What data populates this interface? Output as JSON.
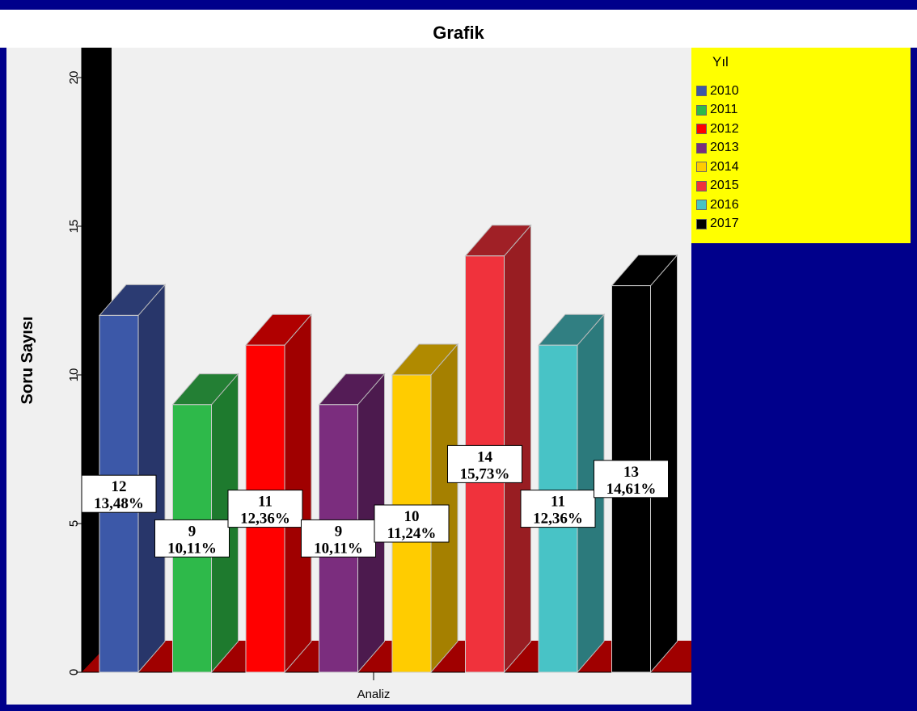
{
  "chart_data": {
    "type": "bar",
    "title": "Grafik",
    "ylabel": "Soru Sayısı",
    "xlabel": "",
    "categories": [
      "Analiz"
    ],
    "ylim": [
      0,
      20
    ],
    "yticks": [
      "0",
      "5",
      "10",
      "15",
      "20"
    ],
    "legend_title": "Yıl",
    "legend_position": "right",
    "series": [
      {
        "name": "2010",
        "value": 12,
        "label_value": "12",
        "label_percent": "13,48%",
        "color": "#3c58a8",
        "side": "#28366a",
        "top": "#2b3b72"
      },
      {
        "name": "2011",
        "value": 9,
        "label_value": "9",
        "label_percent": "10,11%",
        "color": "#2eb94a",
        "side": "#1e7a2e",
        "top": "#237f34"
      },
      {
        "name": "2012",
        "value": 11,
        "label_value": "11",
        "label_percent": "12,36%",
        "color": "#ff0000",
        "side": "#a00000",
        "top": "#b00000"
      },
      {
        "name": "2013",
        "value": 9,
        "label_value": "9",
        "label_percent": "10,11%",
        "color": "#7b2d7e",
        "side": "#4c1a4e",
        "top": "#541c56"
      },
      {
        "name": "2014",
        "value": 10,
        "label_value": "10",
        "label_percent": "11,24%",
        "color": "#ffcc00",
        "side": "#a58000",
        "top": "#b08a00"
      },
      {
        "name": "2015",
        "value": 14,
        "label_value": "14",
        "label_percent": "15,73%",
        "color": "#f0323c",
        "side": "#981d22",
        "top": "#a02026"
      },
      {
        "name": "2016",
        "value": 11,
        "label_value": "11",
        "label_percent": "12,36%",
        "color": "#48c3c6",
        "side": "#2c7a7c",
        "top": "#317f82"
      },
      {
        "name": "2017",
        "value": 13,
        "label_value": "13",
        "label_percent": "14,61%",
        "color": "#000000",
        "side": "#000000",
        "top": "#000000"
      }
    ]
  },
  "colors": {
    "frame": "#00008b",
    "plot_background": "#f0f0f0",
    "back_wall": "#000000",
    "floor": "#a00000",
    "legend_background": "#ffff00"
  }
}
